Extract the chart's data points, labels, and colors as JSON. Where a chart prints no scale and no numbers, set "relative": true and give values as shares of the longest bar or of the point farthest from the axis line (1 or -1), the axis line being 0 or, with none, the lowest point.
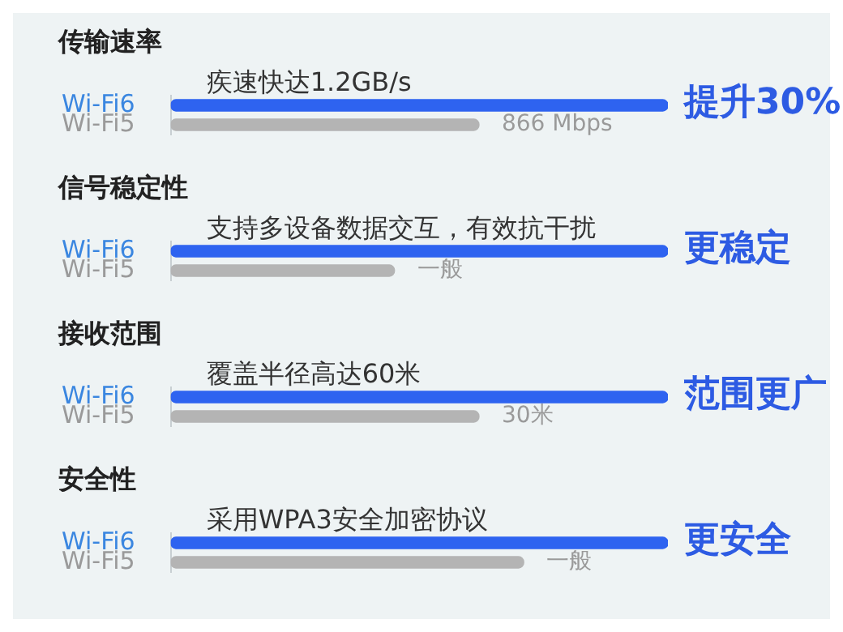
{
  "chart_data": [
    {
      "type": "bar",
      "orientation": "horizontal",
      "relative": true,
      "title": "传输速率",
      "categories": [
        "Wi-Fi6",
        "Wi-Fi5"
      ],
      "values": [
        1,
        0.62
      ],
      "colors": [
        "#2e63f0",
        "#b4b4b4"
      ],
      "annotations": [
        "疾速快达1.2GB/s",
        "866 Mbps",
        "提升30%"
      ]
    },
    {
      "type": "bar",
      "orientation": "horizontal",
      "relative": true,
      "title": "信号稳定性",
      "categories": [
        "Wi-Fi6",
        "Wi-Fi5"
      ],
      "values": [
        1,
        0.45
      ],
      "colors": [
        "#2e63f0",
        "#b4b4b4"
      ],
      "annotations": [
        "支持多设备数据交互，有效抗干扰",
        "一般",
        "更稳定"
      ]
    },
    {
      "type": "bar",
      "orientation": "horizontal",
      "relative": true,
      "title": "接收范围",
      "categories": [
        "Wi-Fi6",
        "Wi-Fi5"
      ],
      "values": [
        1,
        0.62
      ],
      "colors": [
        "#2e63f0",
        "#b4b4b4"
      ],
      "annotations": [
        "覆盖半径高达60米",
        "30米",
        "范围更广"
      ]
    },
    {
      "type": "bar",
      "orientation": "horizontal",
      "relative": true,
      "title": "安全性",
      "categories": [
        "Wi-Fi6",
        "Wi-Fi5"
      ],
      "values": [
        1,
        0.71
      ],
      "colors": [
        "#2e63f0",
        "#b4b4b4"
      ],
      "annotations": [
        "采用WPA3安全加密协议",
        "一般",
        "更安全"
      ]
    }
  ]
}
